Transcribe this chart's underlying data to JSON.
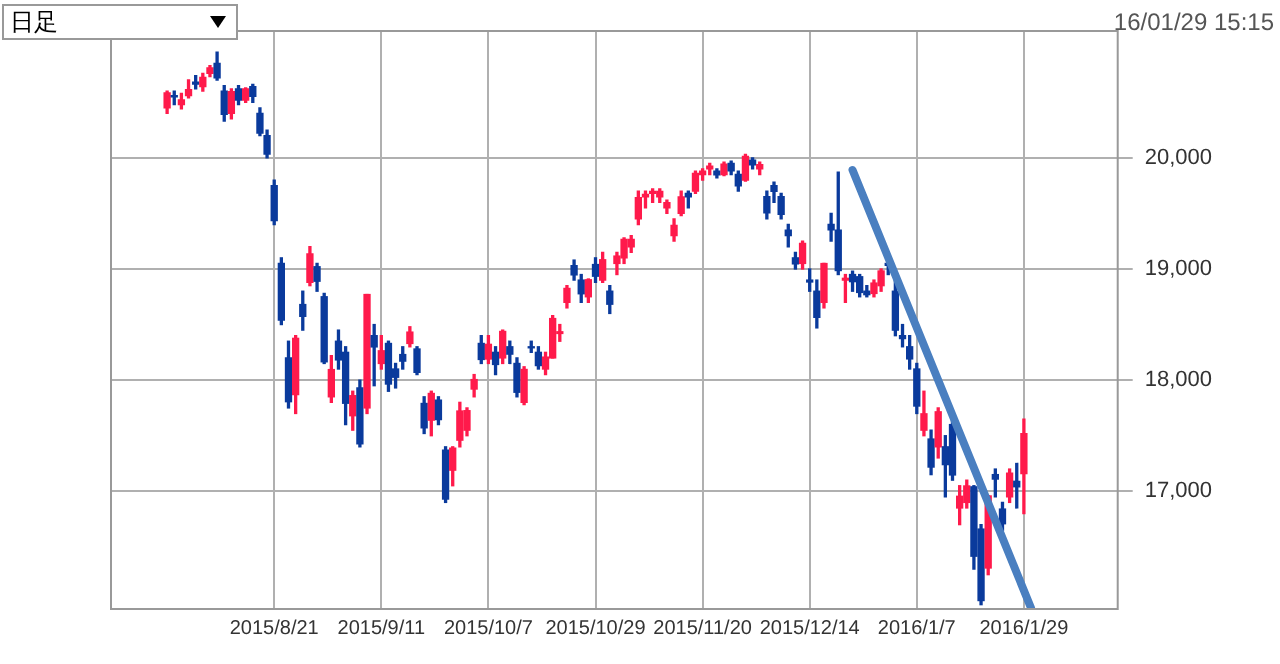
{
  "chart_data": {
    "type": "candlestick",
    "annotations": [
      "日足",
      "16/01/29 15:15"
    ],
    "categories": [
      null,
      null,
      null,
      null,
      null,
      null,
      null,
      null,
      null,
      null,
      null,
      null,
      null,
      null,
      null,
      null,
      null,
      null,
      null,
      null,
      null,
      null,
      null,
      "2015/8/21",
      null,
      null,
      null,
      null,
      null,
      null,
      null,
      null,
      null,
      null,
      null,
      null,
      null,
      null,
      "2015/9/11",
      null,
      null,
      null,
      null,
      null,
      null,
      null,
      null,
      null,
      null,
      null,
      null,
      null,
      null,
      "2015/10/7",
      null,
      null,
      null,
      null,
      null,
      null,
      null,
      null,
      null,
      null,
      null,
      null,
      null,
      null,
      "2015/10/29",
      null,
      null,
      null,
      null,
      null,
      null,
      null,
      null,
      null,
      null,
      null,
      null,
      null,
      null,
      "2015/11/20",
      null,
      null,
      null,
      null,
      null,
      null,
      null,
      null,
      null,
      null,
      null,
      null,
      null,
      null,
      "2015/12/14",
      null,
      null,
      null,
      null,
      null,
      null,
      null,
      null,
      null,
      null,
      null,
      null,
      null,
      null,
      "2016/1/7",
      null,
      null,
      null,
      null,
      null,
      null,
      null,
      null,
      null,
      null,
      null,
      null,
      null,
      null,
      "2016/1/29",
      null,
      null,
      null,
      null,
      null,
      null,
      null,
      null,
      null,
      null,
      null,
      null,
      null
    ],
    "ohlc": [
      null,
      null,
      null,
      null,
      null,
      null,
      null,
      null,
      [
        20450,
        20600,
        20400,
        20585
      ],
      [
        20560,
        20600,
        20480,
        20548
      ],
      [
        20480,
        20580,
        20440,
        20520
      ],
      [
        20560,
        20700,
        20540,
        20614
      ],
      [
        20680,
        20740,
        20620,
        20664
      ],
      [
        20640,
        20760,
        20600,
        20724
      ],
      [
        20760,
        20830,
        20730,
        20808
      ],
      [
        20850,
        20950,
        20700,
        20720
      ],
      [
        20600,
        20650,
        20330,
        20392
      ],
      [
        20400,
        20620,
        20350,
        20595
      ],
      [
        20620,
        20650,
        20480,
        20519
      ],
      [
        20520,
        20630,
        20500,
        20620
      ],
      [
        20640,
        20660,
        20500,
        20554
      ],
      [
        20400,
        20450,
        20200,
        20222
      ],
      [
        20200,
        20250,
        20000,
        20033
      ],
      [
        19750,
        19800,
        19400,
        19435
      ],
      [
        19050,
        19100,
        18500,
        18540
      ],
      [
        18200,
        18350,
        17750,
        17806
      ],
      [
        17870,
        18400,
        17700,
        18376
      ],
      [
        18680,
        18800,
        18450,
        18574
      ],
      [
        18880,
        19200,
        18850,
        19136
      ],
      [
        19020,
        19050,
        18800,
        18890
      ],
      [
        18750,
        18780,
        18150,
        18165
      ],
      [
        17850,
        18220,
        17800,
        18095
      ],
      [
        18350,
        18450,
        18100,
        18182
      ],
      [
        18250,
        18300,
        17600,
        17792
      ],
      [
        17680,
        17900,
        17550,
        17860
      ],
      [
        17930,
        18000,
        17400,
        17427
      ],
      [
        17750,
        18770,
        17700,
        18770
      ],
      [
        18400,
        18500,
        17950,
        18299
      ],
      [
        18150,
        18400,
        18100,
        18264
      ],
      [
        18330,
        18350,
        17900,
        17965
      ],
      [
        18100,
        18150,
        17930,
        18026
      ],
      [
        18230,
        18300,
        18100,
        18171
      ],
      [
        18330,
        18480,
        18300,
        18432
      ],
      [
        18280,
        18300,
        18050,
        18070
      ],
      [
        17790,
        17850,
        17520,
        17571
      ],
      [
        17640,
        17900,
        17500,
        17880
      ],
      [
        17820,
        17850,
        17600,
        17645
      ],
      [
        17370,
        17400,
        16900,
        16930
      ],
      [
        17190,
        17400,
        17050,
        17388
      ],
      [
        17460,
        17800,
        17400,
        17722
      ],
      [
        17550,
        17750,
        17500,
        17725
      ],
      [
        17920,
        18050,
        17850,
        18005
      ],
      [
        18330,
        18400,
        18150,
        18186
      ],
      [
        18190,
        18400,
        18150,
        18322
      ],
      [
        18250,
        18300,
        18050,
        18141
      ],
      [
        18200,
        18450,
        18150,
        18438
      ],
      [
        18300,
        18350,
        18150,
        18234
      ],
      [
        18150,
        18200,
        17850,
        17891
      ],
      [
        17800,
        18120,
        17780,
        18096
      ],
      [
        18300,
        18350,
        18250,
        18291
      ],
      [
        18250,
        18300,
        18100,
        18131
      ],
      [
        18100,
        18250,
        18050,
        18207
      ],
      [
        18200,
        18580,
        18200,
        18554
      ],
      [
        18420,
        18500,
        18350,
        18435
      ],
      [
        18700,
        18850,
        18650,
        18825
      ],
      [
        19030,
        19080,
        18900,
        18947
      ],
      [
        18900,
        18950,
        18700,
        18777
      ],
      [
        18750,
        18910,
        18700,
        18903
      ],
      [
        19040,
        19100,
        18880,
        18935
      ],
      [
        18900,
        19150,
        18880,
        19083
      ],
      [
        18800,
        18850,
        18600,
        18683
      ],
      [
        19050,
        19150,
        18950,
        19116
      ],
      [
        19100,
        19280,
        19050,
        19265
      ],
      [
        19200,
        19300,
        19150,
        19265
      ],
      [
        19450,
        19700,
        19400,
        19642
      ],
      [
        19650,
        19700,
        19550,
        19671
      ],
      [
        19680,
        19720,
        19600,
        19697
      ],
      [
        19650,
        19720,
        19600,
        19697
      ],
      [
        19550,
        19620,
        19500,
        19596
      ],
      [
        19300,
        19450,
        19250,
        19393
      ],
      [
        19500,
        19700,
        19480,
        19649
      ],
      [
        19680,
        19700,
        19550,
        19649
      ],
      [
        19700,
        19880,
        19680,
        19859
      ],
      [
        19850,
        19900,
        19800,
        19879
      ],
      [
        19900,
        19950,
        19850,
        19924
      ],
      [
        19880,
        19900,
        19820,
        19847
      ],
      [
        19850,
        19960,
        19840,
        19944
      ],
      [
        19950,
        19970,
        19850,
        19883
      ],
      [
        19850,
        19880,
        19700,
        19747
      ],
      [
        19800,
        20030,
        19790,
        20012
      ],
      [
        19980,
        20000,
        19900,
        19938
      ],
      [
        19900,
        19960,
        19850,
        19939
      ],
      [
        19650,
        19700,
        19450,
        19504
      ],
      [
        19750,
        19780,
        19600,
        19698
      ],
      [
        19650,
        19680,
        19450,
        19492
      ],
      [
        19350,
        19400,
        19200,
        19301
      ],
      [
        19100,
        19150,
        19000,
        19046
      ],
      [
        19050,
        19250,
        19000,
        19230
      ],
      [
        18900,
        19000,
        18800,
        18883
      ],
      [
        18800,
        18900,
        18470,
        18565
      ],
      [
        18700,
        19050,
        18650,
        19049
      ],
      [
        19400,
        19500,
        19250,
        19353
      ],
      [
        19350,
        19870,
        18950,
        18986
      ],
      [
        18900,
        18950,
        18700,
        18916
      ],
      [
        18950,
        18980,
        18800,
        18886
      ],
      [
        18930,
        18950,
        18750,
        18789
      ],
      [
        18800,
        18850,
        18750,
        18769
      ],
      [
        18780,
        18900,
        18750,
        18873
      ],
      [
        18850,
        19000,
        18800,
        18982
      ],
      [
        19050,
        19100,
        18950,
        19033
      ],
      [
        18800,
        18950,
        18400,
        18450
      ],
      [
        18400,
        18500,
        18300,
        18374
      ],
      [
        18300,
        18400,
        18100,
        18191
      ],
      [
        18100,
        18150,
        17700,
        17767
      ],
      [
        17550,
        17900,
        17500,
        17697
      ],
      [
        17470,
        17550,
        17150,
        17218
      ],
      [
        17400,
        17750,
        17300,
        17715
      ],
      [
        17400,
        17500,
        16950,
        17240
      ],
      [
        17600,
        17650,
        17100,
        17147
      ],
      [
        16850,
        17050,
        16700,
        16955
      ],
      [
        16900,
        17100,
        16850,
        17048
      ],
      [
        17040,
        17050,
        16300,
        16416
      ],
      [
        16660,
        16700,
        15980,
        16017
      ],
      [
        16310,
        16960,
        16250,
        16958
      ],
      [
        17150,
        17200,
        16950,
        17110
      ],
      [
        16840,
        16900,
        16650,
        16708
      ],
      [
        16950,
        17200,
        16900,
        17163
      ],
      [
        17090,
        17250,
        16850,
        17041
      ],
      [
        17160,
        17650,
        16800,
        17518
      ],
      null,
      null,
      null,
      null,
      null,
      null,
      null,
      null,
      null,
      null,
      null,
      null,
      null
    ],
    "colors": [
      null,
      null,
      null,
      null,
      null,
      null,
      null,
      null,
      "#ff1a4b",
      "#0a3a9c",
      "#ff1a4b",
      "#ff1a4b",
      "#0a3a9c",
      "#ff1a4b",
      "#ff1a4b",
      "#0a3a9c",
      "#0a3a9c",
      "#ff1a4b",
      "#0a3a9c",
      "#ff1a4b",
      "#0a3a9c",
      "#0a3a9c",
      "#0a3a9c",
      "#0a3a9c",
      "#0a3a9c",
      "#0a3a9c",
      "#ff1a4b",
      "#0a3a9c",
      "#ff1a4b",
      "#0a3a9c",
      "#0a3a9c",
      "#ff1a4b",
      "#0a3a9c",
      "#0a3a9c",
      "#ff1a4b",
      "#0a3a9c",
      "#ff1a4b",
      "#0a3a9c",
      "#ff1a4b",
      "#0a3a9c",
      "#0a3a9c",
      "#0a3a9c",
      "#ff1a4b",
      "#0a3a9c",
      "#0a3a9c",
      "#ff1a4b",
      "#0a3a9c",
      "#0a3a9c",
      "#ff1a4b",
      "#ff1a4b",
      "#ff1a4b",
      "#ff1a4b",
      "#0a3a9c",
      "#ff1a4b",
      "#0a3a9c",
      "#ff1a4b",
      "#0a3a9c",
      "#0a3a9c",
      "#ff1a4b",
      "#0a3a9c",
      "#0a3a9c",
      "#ff1a4b",
      "#ff1a4b",
      "#ff1a4b",
      "#ff1a4b",
      "#0a3a9c",
      "#0a3a9c",
      "#ff1a4b",
      "#0a3a9c",
      "#ff1a4b",
      "#0a3a9c",
      "#ff1a4b",
      "#ff1a4b",
      "#ff1a4b",
      "#ff1a4b",
      "#ff1a4b",
      "#ff1a4b",
      "#ff1a4b",
      "#ff1a4b",
      "#ff1a4b",
      "#ff1a4b",
      "#0a3a9c",
      "#ff1a4b",
      "#ff1a4b",
      "#ff1a4b",
      "#0a3a9c",
      "#ff1a4b",
      "#0a3a9c",
      "#0a3a9c",
      "#ff1a4b",
      "#0a3a9c",
      "#ff1a4b",
      "#0a3a9c",
      "#0a3a9c",
      "#0a3a9c",
      "#0a3a9c",
      "#0a3a9c",
      "#ff1a4b",
      "#0a3a9c",
      "#0a3a9c",
      "#ff1a4b",
      "#0a3a9c",
      "#0a3a9c",
      "#ff1a4b",
      "#0a3a9c",
      "#0a3a9c",
      "#0a3a9c",
      "#ff1a4b",
      "#ff1a4b",
      "#0a3a9c",
      "#0a3a9c",
      "#0a3a9c",
      "#0a3a9c",
      "#0a3a9c",
      "#ff1a4b",
      "#0a3a9c",
      "#ff1a4b",
      "#0a3a9c",
      "#0a3a9c",
      "#ff1a4b",
      "#ff1a4b",
      "#0a3a9c",
      "#0a3a9c",
      "#ff1a4b",
      "#0a3a9c",
      "#0a3a9c",
      "#ff1a4b",
      "#0a3a9c",
      "#ff1a4b",
      null,
      null,
      null,
      null,
      null,
      null,
      null,
      null,
      null,
      null,
      null,
      null,
      null
    ],
    "series": [
      {
        "type": "line",
        "color": "#4a7fc0",
        "values": [
          null,
          null,
          null,
          null,
          null,
          null,
          null,
          null,
          null,
          null,
          null,
          null,
          null,
          null,
          null,
          null,
          null,
          null,
          null,
          null,
          null,
          null,
          null,
          null,
          null,
          null,
          null,
          null,
          null,
          null,
          null,
          null,
          null,
          null,
          null,
          null,
          null,
          null,
          null,
          null,
          null,
          null,
          null,
          null,
          null,
          null,
          null,
          null,
          null,
          null,
          null,
          null,
          null,
          null,
          null,
          null,
          null,
          null,
          null,
          null,
          null,
          null,
          null,
          null,
          null,
          null,
          null,
          null,
          null,
          null,
          null,
          null,
          null,
          null,
          null,
          null,
          null,
          null,
          null,
          null,
          null,
          null,
          null,
          null,
          null,
          null,
          null,
          null,
          null,
          null,
          null,
          null,
          null,
          null,
          null,
          null,
          null,
          null,
          null,
          null,
          null,
          null,
          null,
          null,
          19890,
          null,
          null,
          null,
          null,
          null,
          null,
          null,
          null,
          null,
          null,
          null,
          null,
          null,
          null,
          null,
          null,
          null,
          null,
          null,
          null,
          null,
          null,
          null,
          null,
          15950,
          null,
          null,
          null,
          null,
          null,
          null,
          null,
          null,
          null,
          null,
          null,
          null
        ]
      }
    ],
    "ylim": [
      15950,
      21150
    ],
    "yticks": [
      {
        "value": 17000,
        "label": "17,000"
      },
      {
        "value": 18000,
        "label": "18,000"
      },
      {
        "value": 19000,
        "label": "19,000"
      },
      {
        "value": 20000,
        "label": "20,000"
      }
    ],
    "grid": true
  }
}
